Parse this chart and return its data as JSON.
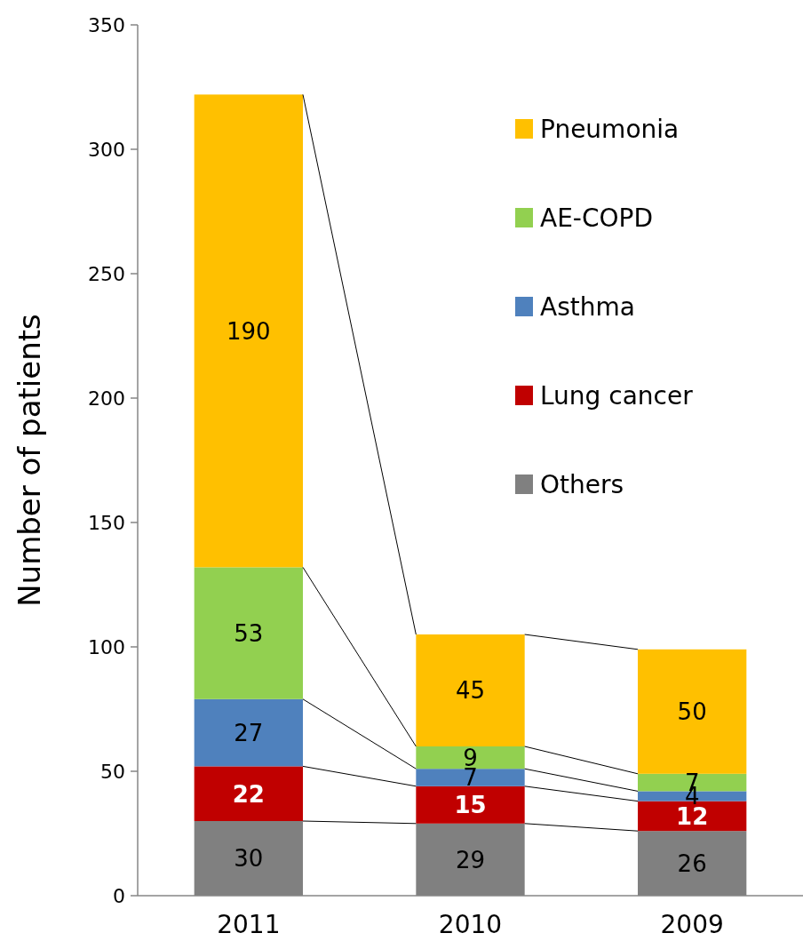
{
  "chart_data": {
    "type": "bar",
    "ylabel": "Number of patients",
    "categories": [
      "2011",
      "2010",
      "2009"
    ],
    "stacked": true,
    "ylim": [
      0,
      350
    ],
    "yticks": [
      0,
      50,
      100,
      150,
      200,
      250,
      300,
      350
    ],
    "grid": false,
    "legend": "top right",
    "data_labels": true,
    "series": [
      {
        "name": "Others",
        "color": "#808080",
        "values": [
          30,
          29,
          26
        ]
      },
      {
        "name": "Lung cancer",
        "color": "#c00000",
        "values": [
          22,
          15,
          12
        ]
      },
      {
        "name": "Asthma",
        "color": "#4f81bd",
        "values": [
          27,
          7,
          4
        ]
      },
      {
        "name": "AE-COPD",
        "color": "#92d050",
        "values": [
          53,
          9,
          7
        ]
      },
      {
        "name": "Pneumonia",
        "color": "#ffc000",
        "values": [
          190,
          45,
          50
        ]
      }
    ]
  }
}
